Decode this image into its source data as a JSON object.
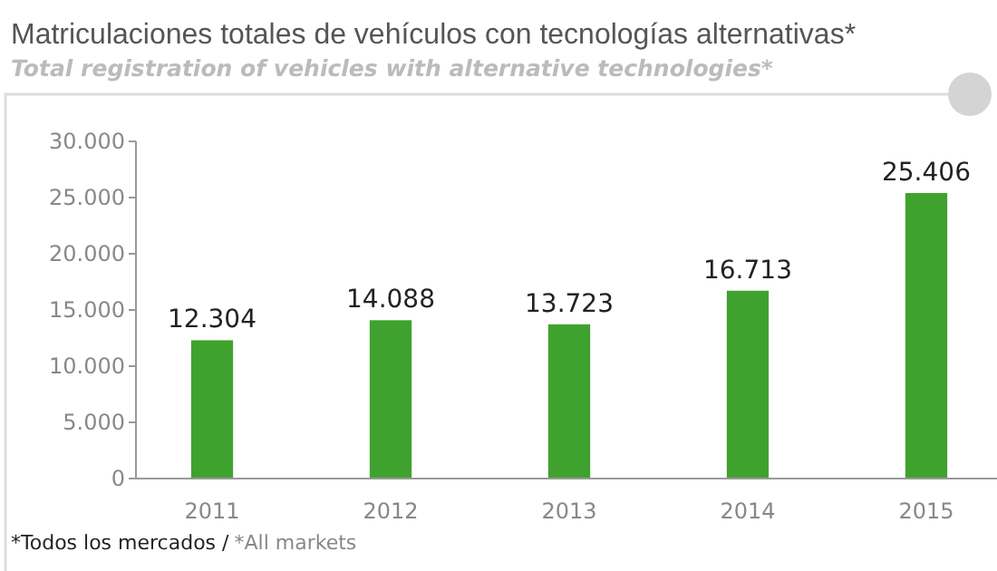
{
  "chart_data": {
    "type": "bar",
    "title": "Matriculaciones totales de vehículos con tecnologías alternativas*",
    "subtitle": "Total registration of vehicles with alternative technologies*",
    "categories": [
      "2011",
      "2012",
      "2013",
      "2014",
      "2015"
    ],
    "values": [
      12304,
      14088,
      13723,
      16713,
      25406
    ],
    "value_labels": [
      "12.304",
      "14.088",
      "13.723",
      "16.713",
      "25.406"
    ],
    "color": "#3fa22e",
    "ylim": [
      0,
      30000
    ],
    "yticks": [
      {
        "value": 0,
        "label": "0"
      },
      {
        "value": 5000,
        "label": "5.000"
      },
      {
        "value": 10000,
        "label": "10.000"
      },
      {
        "value": 15000,
        "label": "15.000"
      },
      {
        "value": 20000,
        "label": "20.000"
      },
      {
        "value": 25000,
        "label": "25.000"
      },
      {
        "value": 30000,
        "label": "30.000"
      }
    ],
    "grid": false,
    "annotations": [
      "*Todos los mercados /",
      "*All markets"
    ]
  }
}
